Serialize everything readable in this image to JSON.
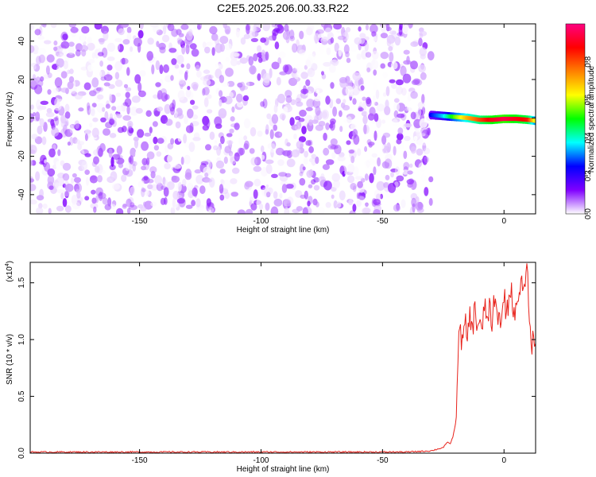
{
  "figure": {
    "title": "C2E5.2025.206.00.33.R22"
  },
  "chart_data": [
    {
      "type": "heatmap",
      "panel": "spectrogram",
      "xlabel": "Height of straight line (km)",
      "ylabel": "Frequency (Hz)",
      "xlim": [
        -195,
        13
      ],
      "ylim": [
        -50,
        49
      ],
      "xticks": [
        -150,
        -100,
        -50,
        0
      ],
      "yticks": [
        -40,
        -20,
        0,
        20,
        40
      ],
      "noise_region_x": [
        -195,
        -30
      ],
      "signal_track": {
        "x": [
          -30,
          -25,
          -20,
          -15,
          -10,
          -5,
          0,
          5,
          10,
          13
        ],
        "frequency": [
          1.5,
          1.0,
          0.5,
          0.0,
          -1.0,
          -1.0,
          -0.5,
          -0.5,
          -1.0,
          -1.5
        ],
        "normalized_amplitude": [
          0.25,
          0.35,
          0.55,
          0.7,
          0.8,
          0.9,
          0.95,
          0.9,
          0.85,
          0.6
        ]
      },
      "colorbar": {
        "label": "Normalized spectral amplitude",
        "ticks": [
          0.0,
          0.2,
          0.4,
          0.6,
          0.8
        ],
        "range": [
          0,
          1
        ],
        "colors": [
          "#ffffff",
          "#8000ff",
          "#0000ff",
          "#00ffff",
          "#00ff00",
          "#ffff00",
          "#ff8000",
          "#ff0000",
          "#ff0080"
        ]
      }
    },
    {
      "type": "line",
      "panel": "snr",
      "xlabel": "Height of straight line (km)",
      "ylabel": "SNR (10 * v/v)",
      "y_exponent_label": "(x10",
      "y_exponent_sup": "4",
      "xlim": [
        -195,
        13
      ],
      "ylim": [
        0,
        1.68
      ],
      "xticks": [
        -150,
        -100,
        -50,
        0
      ],
      "yticks": [
        0.0,
        0.5,
        1.0,
        1.5
      ],
      "ytick_labels": [
        "0.0",
        "0.5",
        "1.0",
        "1.5"
      ],
      "series": [
        {
          "color": "#e8221b",
          "x": [
            -195,
            -180,
            -160,
            -140,
            -120,
            -100,
            -80,
            -60,
            -40,
            -30,
            -25,
            -23,
            -22,
            -21,
            -20,
            -19.5,
            -19,
            -18.5,
            -18,
            -17,
            -16,
            -15,
            -14,
            -13,
            -12,
            -11,
            -10,
            -9,
            -8,
            -7,
            -6,
            -5,
            -4,
            -3,
            -2,
            -1,
            0,
            1,
            2,
            3,
            4,
            5,
            6,
            7,
            8,
            9,
            10,
            11,
            12,
            13
          ],
          "values": [
            0.01,
            0.01,
            0.01,
            0.01,
            0.01,
            0.01,
            0.01,
            0.01,
            0.01,
            0.02,
            0.05,
            0.1,
            0.08,
            0.15,
            0.25,
            0.5,
            0.85,
            1.1,
            1.05,
            0.95,
            1.15,
            1.0,
            1.25,
            1.05,
            1.3,
            1.1,
            1.2,
            1.0,
            1.35,
            1.15,
            1.3,
            1.05,
            1.4,
            1.2,
            1.25,
            1.1,
            1.45,
            1.2,
            1.35,
            1.5,
            1.15,
            1.4,
            1.25,
            1.55,
            1.35,
            1.65,
            1.45,
            0.95,
            1.0,
            1.0
          ]
        }
      ]
    }
  ]
}
